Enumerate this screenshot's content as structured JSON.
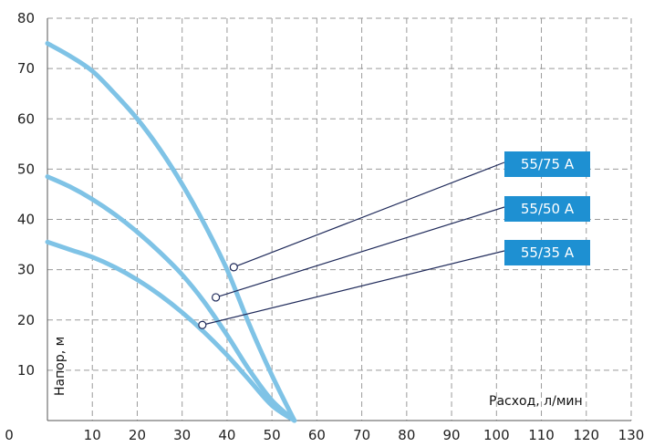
{
  "chart_data": {
    "type": "line",
    "xlabel": "Расход, л/мин",
    "ylabel": "Напор, м",
    "xlim": [
      0,
      130
    ],
    "ylim": [
      0,
      80
    ],
    "xticks": [
      0,
      10,
      20,
      30,
      40,
      50,
      60,
      70,
      80,
      90,
      100,
      110,
      120,
      130
    ],
    "yticks": [
      10,
      20,
      30,
      40,
      50,
      60,
      70,
      80
    ],
    "grid": true,
    "colors": {
      "curve": "#7fc3e6",
      "label_bg": "#1e90d2",
      "leader": "#1f2a5a",
      "grid": "#9a9a9a"
    },
    "series": [
      {
        "name": "55/75 A",
        "x": [
          0,
          5,
          10,
          15,
          20,
          25,
          30,
          35,
          40,
          45,
          50,
          55
        ],
        "y": [
          75,
          72.5,
          69.5,
          65,
          60,
          54,
          47,
          39,
          30,
          19,
          9,
          0
        ],
        "marker": [
          41.5,
          30.5
        ]
      },
      {
        "name": "55/50 A",
        "x": [
          0,
          5,
          10,
          15,
          20,
          25,
          30,
          35,
          40,
          45,
          50,
          55
        ],
        "y": [
          48.5,
          46.5,
          44,
          41,
          37.5,
          33.5,
          29,
          23.5,
          17,
          10,
          4,
          0
        ],
        "marker": [
          37.5,
          24.5
        ]
      },
      {
        "name": "55/35 A",
        "x": [
          0,
          5,
          10,
          15,
          20,
          25,
          30,
          35,
          40,
          45,
          50,
          55
        ],
        "y": [
          35.5,
          34,
          32.5,
          30.5,
          28,
          25,
          21.5,
          17.5,
          13,
          8,
          3,
          0
        ],
        "marker": [
          34.5,
          19
        ]
      }
    ]
  }
}
